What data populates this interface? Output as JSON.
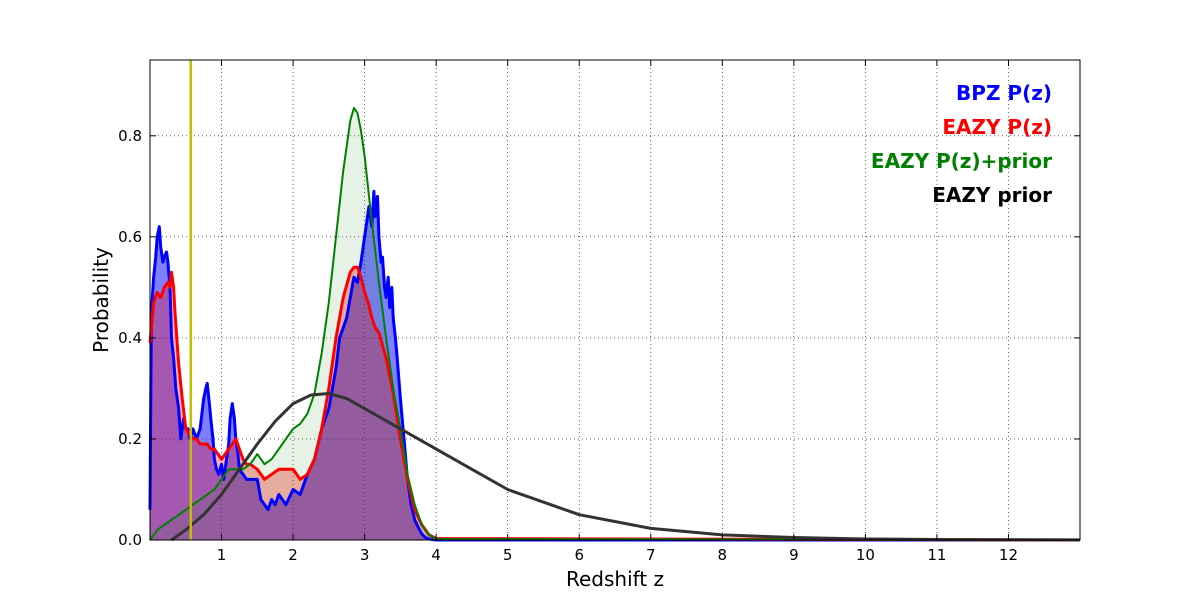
{
  "chart_data": {
    "type": "area",
    "xlabel": "Redshift z",
    "ylabel": "Probability",
    "xlim": [
      0,
      13
    ],
    "ylim": [
      0,
      0.95
    ],
    "x_ticks": [
      1,
      2,
      3,
      4,
      5,
      6,
      7,
      8,
      9,
      10,
      11,
      12
    ],
    "y_ticks": [
      0.0,
      0.2,
      0.4,
      0.6,
      0.8
    ],
    "y_tick_labels": [
      "0.0",
      "0.2",
      "0.4",
      "0.6",
      "0.8"
    ],
    "grid": true,
    "legend_position": "top-right",
    "legend": [
      {
        "label": "BPZ P(z)",
        "color": "#0000ff"
      },
      {
        "label": "EAZY P(z)",
        "color": "#ff0000"
      },
      {
        "label": "EAZY P(z)+prior",
        "color": "#008000"
      },
      {
        "label": "EAZY prior",
        "color": "#000000"
      }
    ],
    "vertical_line": {
      "x": 0.57,
      "color": "#bfbf00"
    },
    "series": [
      {
        "name": "BPZ P(z)",
        "color": "#0000ff",
        "fill": true,
        "x": [
          0.0,
          0.02,
          0.05,
          0.08,
          0.1,
          0.13,
          0.15,
          0.18,
          0.2,
          0.23,
          0.25,
          0.28,
          0.3,
          0.33,
          0.36,
          0.4,
          0.43,
          0.47,
          0.5,
          0.53,
          0.56,
          0.6,
          0.65,
          0.7,
          0.75,
          0.78,
          0.8,
          0.83,
          0.85,
          0.88,
          0.9,
          0.93,
          0.96,
          1.0,
          1.03,
          1.06,
          1.1,
          1.12,
          1.15,
          1.18,
          1.2,
          1.23,
          1.25,
          1.3,
          1.35,
          1.4,
          1.45,
          1.5,
          1.55,
          1.6,
          1.65,
          1.7,
          1.75,
          1.8,
          1.9,
          2.0,
          2.1,
          2.2,
          2.3,
          2.4,
          2.5,
          2.6,
          2.65,
          2.7,
          2.75,
          2.8,
          2.85,
          2.9,
          2.95,
          3.0,
          3.03,
          3.06,
          3.1,
          3.13,
          3.15,
          3.18,
          3.2,
          3.23,
          3.25,
          3.28,
          3.3,
          3.33,
          3.35,
          3.38,
          3.4,
          3.43,
          3.45,
          3.5,
          3.55,
          3.6,
          3.65,
          3.7,
          3.75,
          3.8,
          3.85,
          3.9,
          4.0,
          13.0
        ],
        "values": [
          0.06,
          0.45,
          0.52,
          0.56,
          0.6,
          0.62,
          0.58,
          0.55,
          0.56,
          0.57,
          0.55,
          0.5,
          0.4,
          0.36,
          0.3,
          0.26,
          0.2,
          0.24,
          0.22,
          0.22,
          0.2,
          0.22,
          0.2,
          0.22,
          0.28,
          0.3,
          0.31,
          0.27,
          0.24,
          0.2,
          0.16,
          0.14,
          0.13,
          0.15,
          0.12,
          0.15,
          0.19,
          0.24,
          0.27,
          0.24,
          0.2,
          0.17,
          0.14,
          0.13,
          0.12,
          0.12,
          0.12,
          0.12,
          0.08,
          0.07,
          0.06,
          0.08,
          0.07,
          0.09,
          0.07,
          0.1,
          0.09,
          0.13,
          0.16,
          0.22,
          0.26,
          0.34,
          0.4,
          0.42,
          0.44,
          0.48,
          0.52,
          0.51,
          0.55,
          0.6,
          0.63,
          0.66,
          0.62,
          0.69,
          0.64,
          0.68,
          0.6,
          0.55,
          0.56,
          0.5,
          0.48,
          0.52,
          0.46,
          0.5,
          0.44,
          0.4,
          0.37,
          0.28,
          0.2,
          0.12,
          0.07,
          0.04,
          0.025,
          0.012,
          0.005,
          0.002,
          0.0,
          0.0
        ]
      },
      {
        "name": "EAZY P(z)",
        "color": "#ff0000",
        "fill": true,
        "x": [
          0.0,
          0.05,
          0.1,
          0.15,
          0.2,
          0.25,
          0.28,
          0.3,
          0.33,
          0.35,
          0.4,
          0.45,
          0.5,
          0.55,
          0.6,
          0.65,
          0.7,
          0.75,
          0.8,
          0.85,
          0.9,
          0.95,
          1.0,
          1.05,
          1.1,
          1.15,
          1.2,
          1.25,
          1.3,
          1.35,
          1.4,
          1.5,
          1.6,
          1.7,
          1.8,
          1.9,
          2.0,
          2.1,
          2.2,
          2.3,
          2.4,
          2.5,
          2.6,
          2.7,
          2.8,
          2.85,
          2.9,
          2.95,
          3.0,
          3.05,
          3.1,
          3.15,
          3.2,
          3.3,
          3.4,
          3.5,
          3.6,
          3.7,
          3.8,
          3.9,
          4.0,
          13.0
        ],
        "values": [
          0.39,
          0.47,
          0.49,
          0.48,
          0.5,
          0.51,
          0.5,
          0.53,
          0.5,
          0.45,
          0.35,
          0.28,
          0.22,
          0.21,
          0.2,
          0.2,
          0.19,
          0.19,
          0.19,
          0.18,
          0.18,
          0.17,
          0.16,
          0.17,
          0.18,
          0.19,
          0.2,
          0.18,
          0.16,
          0.15,
          0.15,
          0.14,
          0.12,
          0.13,
          0.14,
          0.14,
          0.14,
          0.12,
          0.13,
          0.16,
          0.22,
          0.3,
          0.4,
          0.48,
          0.53,
          0.54,
          0.54,
          0.52,
          0.49,
          0.47,
          0.44,
          0.42,
          0.41,
          0.36,
          0.29,
          0.2,
          0.12,
          0.06,
          0.03,
          0.01,
          0.003,
          0.0
        ]
      },
      {
        "name": "EAZY P(z)+prior",
        "color": "#008000",
        "fill": true,
        "x": [
          0.0,
          0.05,
          0.1,
          0.2,
          0.3,
          0.4,
          0.5,
          0.6,
          0.7,
          0.8,
          0.9,
          1.0,
          1.1,
          1.2,
          1.3,
          1.4,
          1.5,
          1.6,
          1.7,
          1.8,
          1.9,
          2.0,
          2.1,
          2.2,
          2.3,
          2.4,
          2.5,
          2.6,
          2.7,
          2.8,
          2.85,
          2.9,
          2.95,
          3.0,
          3.1,
          3.2,
          3.3,
          3.4,
          3.5,
          3.6,
          3.7,
          3.8,
          3.9,
          4.0,
          13.0
        ],
        "values": [
          0.0,
          0.01,
          0.02,
          0.03,
          0.04,
          0.05,
          0.06,
          0.07,
          0.08,
          0.09,
          0.1,
          0.12,
          0.14,
          0.14,
          0.14,
          0.15,
          0.17,
          0.15,
          0.16,
          0.18,
          0.2,
          0.22,
          0.23,
          0.25,
          0.29,
          0.37,
          0.47,
          0.6,
          0.73,
          0.83,
          0.855,
          0.845,
          0.81,
          0.76,
          0.63,
          0.51,
          0.4,
          0.3,
          0.22,
          0.13,
          0.07,
          0.03,
          0.01,
          0.002,
          0.0
        ]
      },
      {
        "name": "EAZY prior",
        "color": "#333333",
        "fill": false,
        "x": [
          0.3,
          0.5,
          0.75,
          1.0,
          1.25,
          1.5,
          1.75,
          2.0,
          2.25,
          2.5,
          2.75,
          3.0,
          3.5,
          4.0,
          4.5,
          5.0,
          6.0,
          7.0,
          8.0,
          9.0,
          10.0,
          11.0,
          12.0,
          13.0
        ],
        "values": [
          0.0,
          0.02,
          0.05,
          0.09,
          0.14,
          0.19,
          0.235,
          0.27,
          0.287,
          0.29,
          0.28,
          0.26,
          0.22,
          0.18,
          0.14,
          0.1,
          0.05,
          0.023,
          0.01,
          0.005,
          0.002,
          0.001,
          0.0005,
          0.0002
        ]
      }
    ]
  }
}
